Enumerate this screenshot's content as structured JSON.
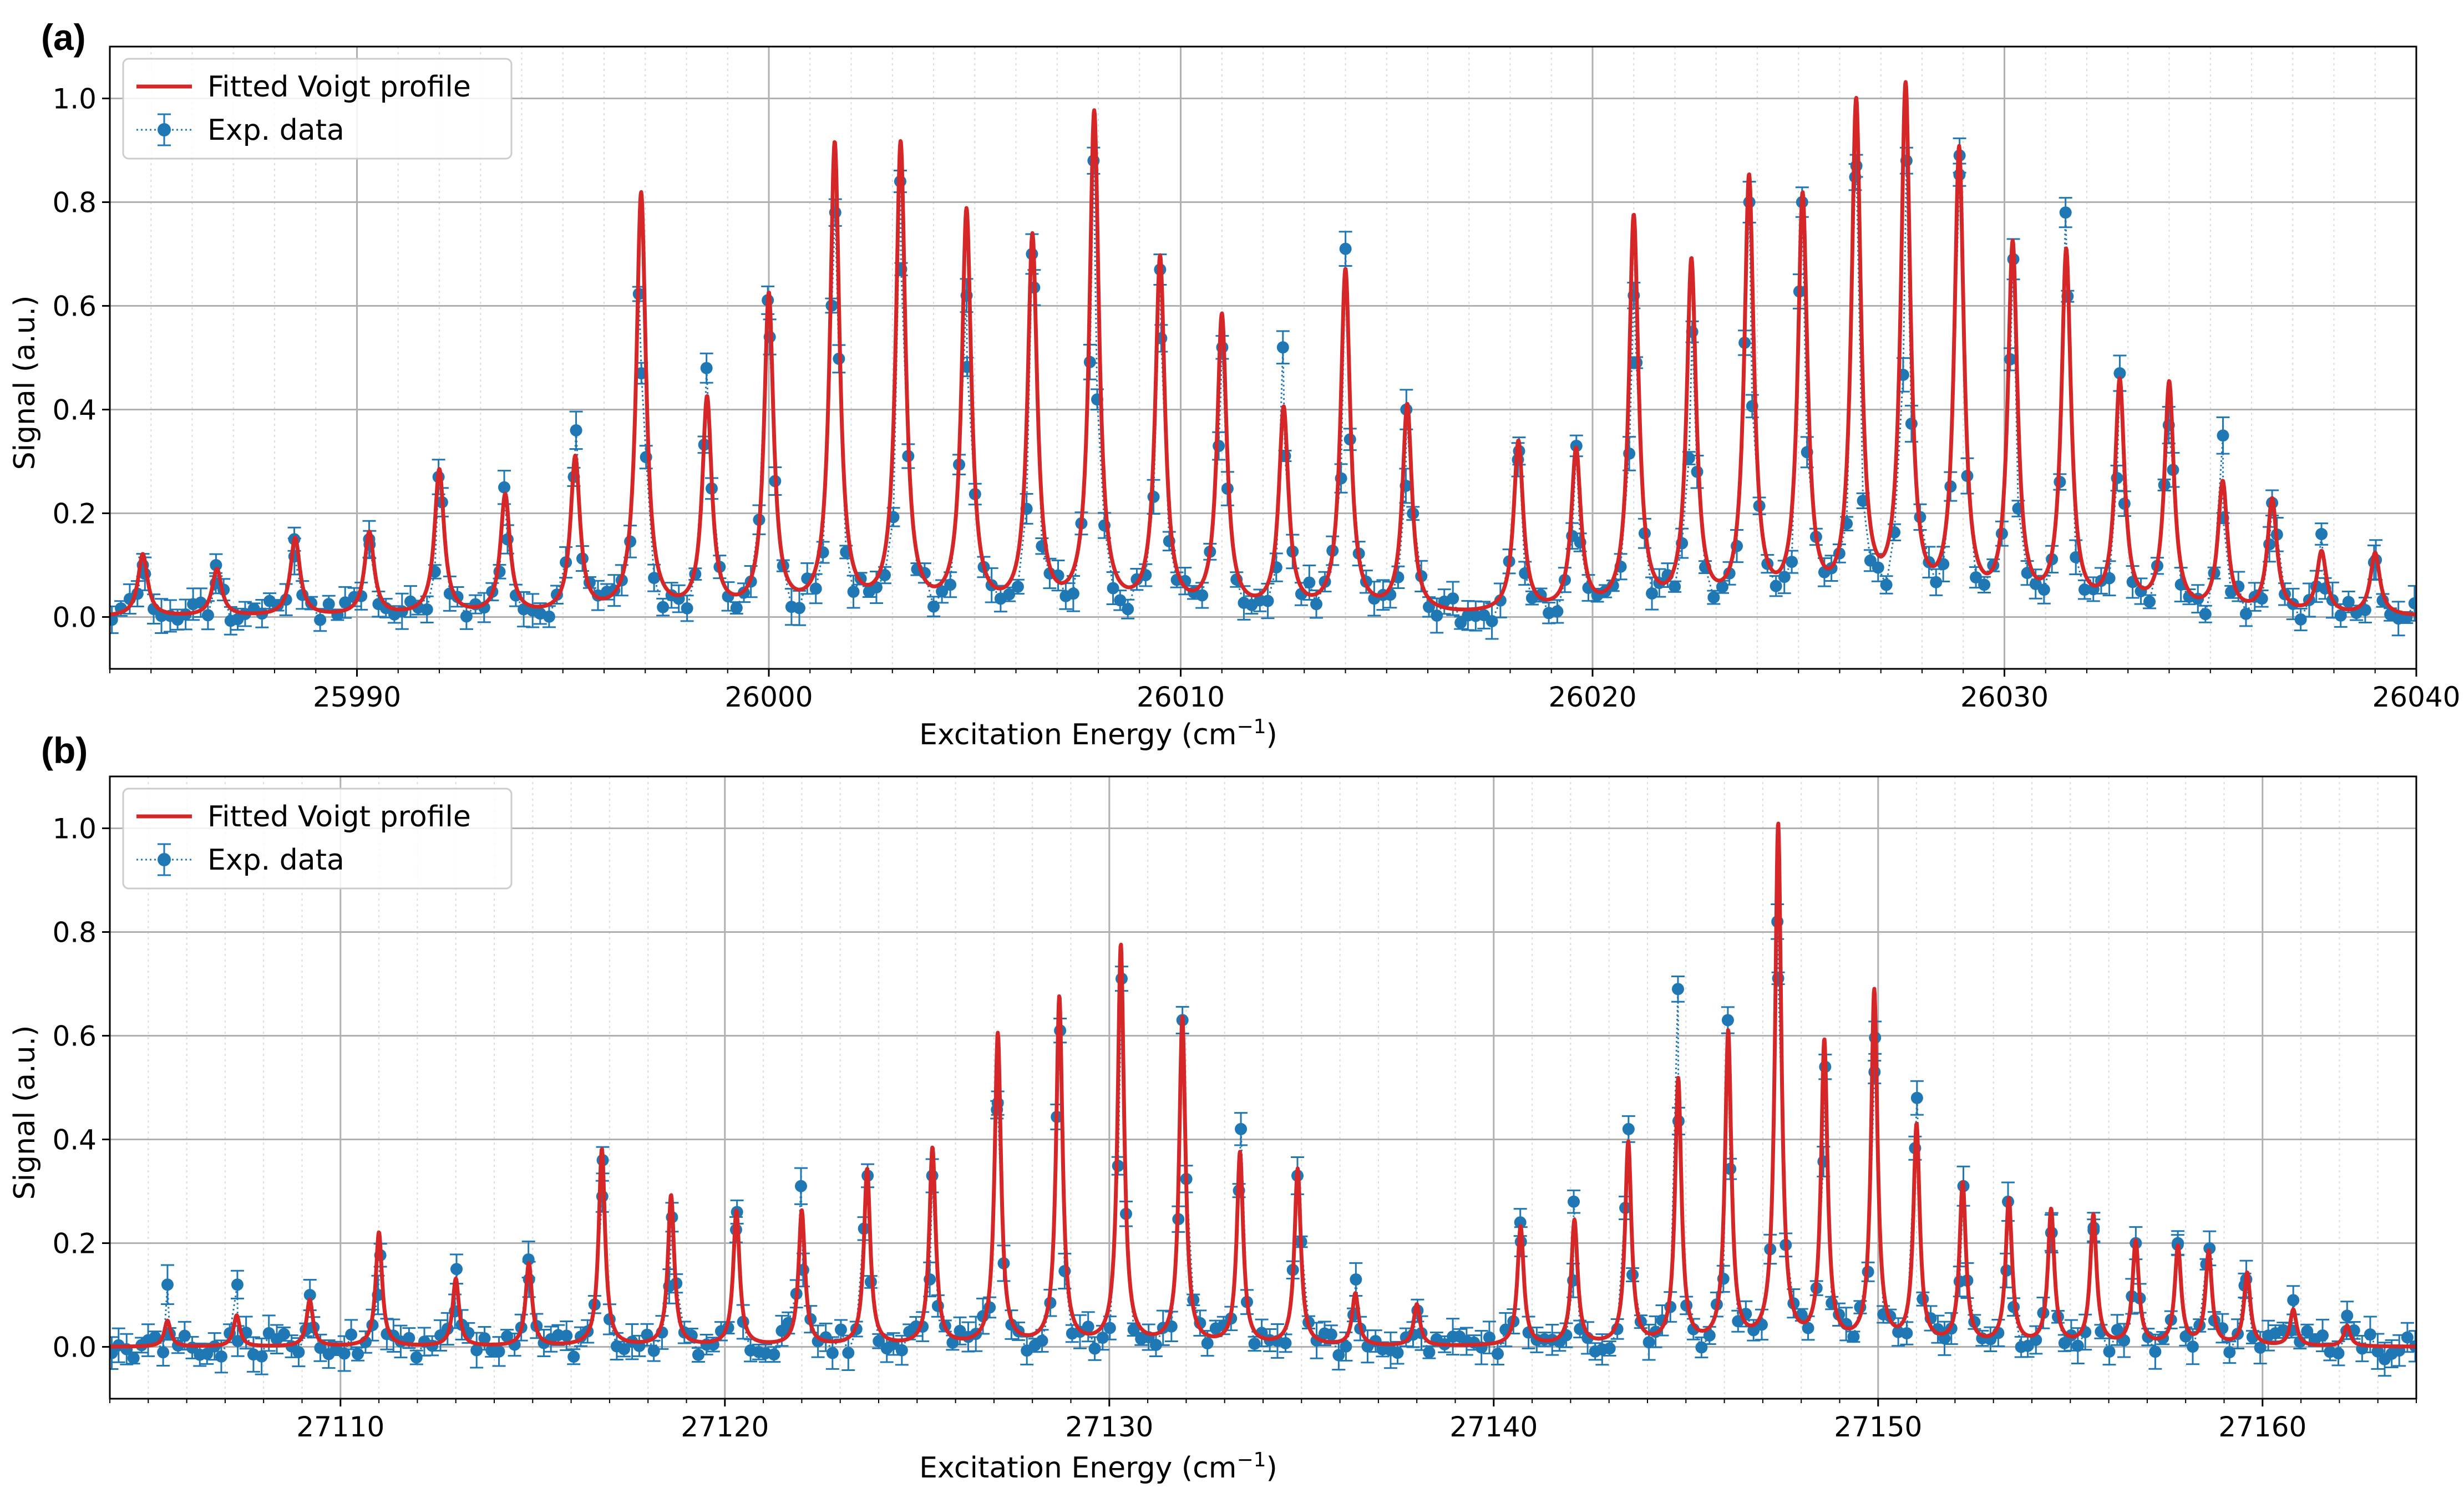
{
  "colors": {
    "fit": "#d62728",
    "data": "#1f77b4",
    "grid_major": "#b0b0b0",
    "grid_minor": "#dcdcdc"
  },
  "legend": {
    "fit_label": "Fitted Voigt profile",
    "data_label": "Exp. data"
  },
  "chart_data": [
    {
      "type": "line",
      "panel_label": "(a)",
      "title": "",
      "xlabel": "Excitation Energy (cm",
      "xlabel_sup": "−1",
      "xlabel_close": ")",
      "ylabel": "Signal (a.u.)",
      "xlim": [
        25984,
        26040
      ],
      "ylim": [
        -0.1,
        1.1
      ],
      "x_ticks": [
        25990,
        26000,
        26010,
        26020,
        26030,
        26040
      ],
      "x_tick_labels": [
        "25990",
        "26000",
        "26010",
        "26020",
        "26030",
        "26040"
      ],
      "y_ticks": [
        0.0,
        0.2,
        0.4,
        0.6,
        0.8,
        1.0
      ],
      "y_tick_labels": [
        "0.0",
        "0.2",
        "0.4",
        "0.6",
        "0.8",
        "1.0"
      ],
      "grid": true,
      "legend_position": "upper-left",
      "series": [
        {
          "name": "Fitted Voigt profile",
          "kind": "line",
          "gamma": 0.14,
          "baseline": 0.0
        },
        {
          "name": "Exp. data",
          "kind": "errorbar-points"
        }
      ],
      "peaks": [
        {
          "x": 25984.8,
          "fit": 0.12,
          "exp": 0.1
        },
        {
          "x": 25986.6,
          "fit": 0.09,
          "exp": 0.1
        },
        {
          "x": 25988.5,
          "fit": 0.15,
          "exp": 0.15
        },
        {
          "x": 25990.3,
          "fit": 0.16,
          "exp": 0.15
        },
        {
          "x": 25992.0,
          "fit": 0.28,
          "exp": 0.27
        },
        {
          "x": 25993.6,
          "fit": 0.23,
          "exp": 0.25
        },
        {
          "x": 25995.3,
          "fit": 0.3,
          "exp": 0.36
        },
        {
          "x": 25996.9,
          "fit": 0.81,
          "exp": 0.47
        },
        {
          "x": 25998.5,
          "fit": 0.41,
          "exp": 0.48
        },
        {
          "x": 26000.0,
          "fit": 0.61,
          "exp": 0.54
        },
        {
          "x": 26001.6,
          "fit": 0.9,
          "exp": 0.78
        },
        {
          "x": 26003.2,
          "fit": 0.9,
          "exp": 0.84
        },
        {
          "x": 26004.8,
          "fit": 0.77,
          "exp": 0.62
        },
        {
          "x": 26006.4,
          "fit": 0.72,
          "exp": 0.7
        },
        {
          "x": 26007.9,
          "fit": 0.96,
          "exp": 0.88
        },
        {
          "x": 26009.5,
          "fit": 0.68,
          "exp": 0.67
        },
        {
          "x": 26011.0,
          "fit": 0.57,
          "exp": 0.52
        },
        {
          "x": 26012.5,
          "fit": 0.39,
          "exp": 0.52
        },
        {
          "x": 26014.0,
          "fit": 0.66,
          "exp": 0.71
        },
        {
          "x": 26015.5,
          "fit": 0.4,
          "exp": 0.4
        },
        {
          "x": 26018.2,
          "fit": 0.33,
          "exp": 0.32
        },
        {
          "x": 26019.6,
          "fit": 0.31,
          "exp": 0.33
        },
        {
          "x": 26021.0,
          "fit": 0.76,
          "exp": 0.62
        },
        {
          "x": 26022.4,
          "fit": 0.67,
          "exp": 0.55
        },
        {
          "x": 26023.8,
          "fit": 0.83,
          "exp": 0.8
        },
        {
          "x": 26025.1,
          "fit": 0.79,
          "exp": 0.8
        },
        {
          "x": 26026.4,
          "fit": 0.97,
          "exp": 0.87
        },
        {
          "x": 26027.6,
          "fit": 1.0,
          "exp": 0.88
        },
        {
          "x": 26028.9,
          "fit": 0.88,
          "exp": 0.89
        },
        {
          "x": 26030.2,
          "fit": 0.7,
          "exp": 0.69
        },
        {
          "x": 26031.5,
          "fit": 0.69,
          "exp": 0.78
        },
        {
          "x": 26032.8,
          "fit": 0.44,
          "exp": 0.47
        },
        {
          "x": 26034.0,
          "fit": 0.44,
          "exp": 0.37
        },
        {
          "x": 26035.3,
          "fit": 0.25,
          "exp": 0.35
        },
        {
          "x": 26036.5,
          "fit": 0.22,
          "exp": 0.22
        },
        {
          "x": 26037.7,
          "fit": 0.12,
          "exp": 0.16
        },
        {
          "x": 26039.0,
          "fit": 0.12,
          "exp": 0.11
        }
      ]
    },
    {
      "type": "line",
      "panel_label": "(b)",
      "title": "",
      "xlabel": "Excitation Energy (cm",
      "xlabel_sup": "−1",
      "xlabel_close": ")",
      "ylabel": "Signal (a.u.)",
      "xlim": [
        27104,
        27164
      ],
      "ylim": [
        -0.1,
        1.1
      ],
      "x_ticks": [
        27110,
        27120,
        27130,
        27140,
        27150,
        27160
      ],
      "x_tick_labels": [
        "27110",
        "27120",
        "27130",
        "27140",
        "27150",
        "27160"
      ],
      "y_ticks": [
        0.0,
        0.2,
        0.4,
        0.6,
        0.8,
        1.0
      ],
      "y_tick_labels": [
        "0.0",
        "0.2",
        "0.4",
        "0.6",
        "0.8",
        "1.0"
      ],
      "grid": true,
      "legend_position": "upper-left",
      "series": [
        {
          "name": "Fitted Voigt profile",
          "kind": "line",
          "gamma": 0.1,
          "baseline": 0.0
        },
        {
          "name": "Exp. data",
          "kind": "errorbar-points"
        }
      ],
      "peaks": [
        {
          "x": 27105.5,
          "fit": 0.05,
          "exp": 0.12
        },
        {
          "x": 27107.3,
          "fit": 0.06,
          "exp": 0.12
        },
        {
          "x": 27109.2,
          "fit": 0.09,
          "exp": 0.1
        },
        {
          "x": 27111.0,
          "fit": 0.22,
          "exp": 0.1
        },
        {
          "x": 27113.0,
          "fit": 0.13,
          "exp": 0.15
        },
        {
          "x": 27114.9,
          "fit": 0.16,
          "exp": 0.13
        },
        {
          "x": 27116.8,
          "fit": 0.38,
          "exp": 0.36
        },
        {
          "x": 27118.6,
          "fit": 0.29,
          "exp": 0.25
        },
        {
          "x": 27120.3,
          "fit": 0.26,
          "exp": 0.26
        },
        {
          "x": 27122.0,
          "fit": 0.26,
          "exp": 0.31
        },
        {
          "x": 27123.7,
          "fit": 0.34,
          "exp": 0.33
        },
        {
          "x": 27125.4,
          "fit": 0.38,
          "exp": 0.33
        },
        {
          "x": 27127.1,
          "fit": 0.6,
          "exp": 0.47
        },
        {
          "x": 27128.7,
          "fit": 0.67,
          "exp": 0.61
        },
        {
          "x": 27130.3,
          "fit": 0.77,
          "exp": 0.71
        },
        {
          "x": 27131.9,
          "fit": 0.63,
          "exp": 0.63
        },
        {
          "x": 27133.4,
          "fit": 0.37,
          "exp": 0.42
        },
        {
          "x": 27134.9,
          "fit": 0.34,
          "exp": 0.33
        },
        {
          "x": 27136.4,
          "fit": 0.1,
          "exp": 0.13
        },
        {
          "x": 27138.0,
          "fit": 0.08,
          "exp": 0.07
        },
        {
          "x": 27140.7,
          "fit": 0.23,
          "exp": 0.24
        },
        {
          "x": 27142.1,
          "fit": 0.24,
          "exp": 0.28
        },
        {
          "x": 27143.5,
          "fit": 0.39,
          "exp": 0.42
        },
        {
          "x": 27144.8,
          "fit": 0.51,
          "exp": 0.69
        },
        {
          "x": 27146.1,
          "fit": 0.6,
          "exp": 0.63
        },
        {
          "x": 27147.4,
          "fit": 1.0,
          "exp": 0.82
        },
        {
          "x": 27148.6,
          "fit": 0.58,
          "exp": 0.54
        },
        {
          "x": 27149.9,
          "fit": 0.68,
          "exp": 0.53
        },
        {
          "x": 27151.0,
          "fit": 0.42,
          "exp": 0.48
        },
        {
          "x": 27152.2,
          "fit": 0.31,
          "exp": 0.31
        },
        {
          "x": 27153.4,
          "fit": 0.28,
          "exp": 0.28
        },
        {
          "x": 27154.5,
          "fit": 0.26,
          "exp": 0.22
        },
        {
          "x": 27155.6,
          "fit": 0.25,
          "exp": 0.23
        },
        {
          "x": 27156.7,
          "fit": 0.2,
          "exp": 0.2
        },
        {
          "x": 27157.8,
          "fit": 0.19,
          "exp": 0.2
        },
        {
          "x": 27158.6,
          "fit": 0.18,
          "exp": 0.19
        },
        {
          "x": 27159.6,
          "fit": 0.14,
          "exp": 0.13
        },
        {
          "x": 27160.8,
          "fit": 0.07,
          "exp": 0.09
        },
        {
          "x": 27162.2,
          "fit": 0.04,
          "exp": 0.06
        }
      ]
    }
  ]
}
